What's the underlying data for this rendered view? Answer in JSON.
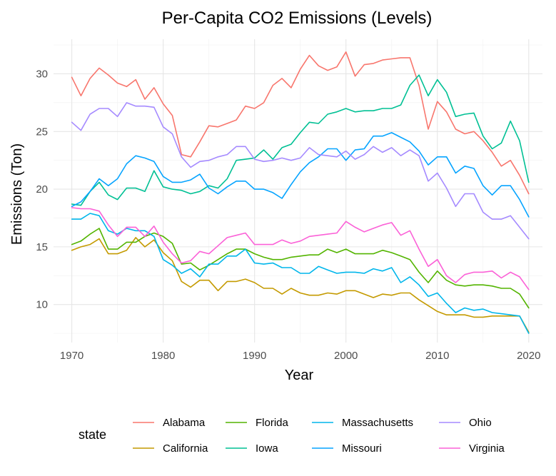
{
  "chart_data": {
    "type": "line",
    "title": "Per-Capita CO2 Emissions (Levels)",
    "xlabel": "Year",
    "ylabel": "Emissions (Ton)",
    "xlim": [
      1968,
      2021.5
    ],
    "ylim": [
      6.7,
      33.0
    ],
    "xticks": [
      1970,
      1980,
      1990,
      2000,
      2010,
      2020
    ],
    "yticks": [
      10,
      15,
      20,
      25,
      30
    ],
    "grid": true,
    "legend_title": "state",
    "legend_position": "bottom",
    "x": [
      1970,
      1971,
      1972,
      1973,
      1974,
      1975,
      1976,
      1977,
      1978,
      1979,
      1980,
      1981,
      1982,
      1983,
      1984,
      1985,
      1986,
      1987,
      1988,
      1989,
      1990,
      1991,
      1992,
      1993,
      1994,
      1995,
      1996,
      1997,
      1998,
      1999,
      2000,
      2001,
      2002,
      2003,
      2004,
      2005,
      2006,
      2007,
      2008,
      2009,
      2010,
      2011,
      2012,
      2013,
      2014,
      2015,
      2016,
      2017,
      2018,
      2019,
      2020
    ],
    "series": [
      {
        "name": "Alabama",
        "color": "#F8766D",
        "values": [
          29.7,
          28.1,
          29.6,
          30.5,
          29.9,
          29.2,
          28.9,
          29.5,
          27.8,
          28.8,
          27.4,
          26.4,
          23.0,
          22.8,
          24.1,
          25.5,
          25.4,
          25.7,
          26.0,
          27.2,
          27.0,
          27.5,
          29.0,
          29.6,
          28.8,
          30.4,
          31.6,
          30.7,
          30.3,
          30.6,
          31.9,
          29.8,
          30.8,
          30.9,
          31.2,
          31.3,
          31.4,
          31.4,
          29.0,
          25.2,
          27.6,
          26.7,
          25.2,
          24.8,
          25.0,
          24.2,
          23.2,
          22.0,
          22.5,
          21.2,
          19.6
        ]
      },
      {
        "name": "California",
        "color": "#C49A00",
        "values": [
          14.7,
          15.0,
          15.2,
          15.7,
          14.4,
          14.4,
          14.7,
          15.8,
          15.0,
          15.6,
          14.5,
          13.8,
          12.0,
          11.5,
          12.1,
          12.1,
          11.2,
          12.0,
          12.0,
          12.2,
          11.9,
          11.4,
          11.4,
          10.9,
          11.4,
          11.0,
          10.8,
          10.8,
          11.0,
          10.9,
          11.2,
          11.2,
          10.9,
          10.6,
          10.9,
          10.8,
          11.0,
          11.0,
          10.4,
          9.9,
          9.4,
          9.1,
          9.1,
          9.1,
          8.9,
          8.9,
          9.0,
          9.0,
          9.0,
          9.0,
          7.6
        ]
      },
      {
        "name": "Florida",
        "color": "#53B400",
        "values": [
          15.2,
          15.5,
          16.1,
          16.6,
          14.8,
          14.8,
          15.4,
          15.4,
          15.9,
          16.2,
          15.9,
          15.3,
          13.5,
          13.6,
          13.0,
          13.4,
          13.9,
          14.4,
          14.8,
          14.8,
          14.4,
          14.1,
          13.9,
          13.9,
          14.1,
          14.2,
          14.3,
          14.3,
          14.8,
          14.5,
          14.8,
          14.4,
          14.4,
          14.4,
          14.7,
          14.5,
          14.2,
          13.9,
          12.8,
          11.9,
          12.9,
          12.1,
          11.7,
          11.6,
          11.7,
          11.7,
          11.6,
          11.4,
          11.4,
          10.9,
          9.7
        ]
      },
      {
        "name": "Iowa",
        "color": "#00C094",
        "values": [
          18.7,
          18.6,
          19.8,
          20.6,
          19.5,
          19.1,
          20.1,
          20.1,
          19.8,
          21.6,
          20.2,
          20.0,
          19.9,
          19.6,
          19.8,
          20.3,
          20.1,
          20.9,
          22.5,
          22.6,
          22.7,
          23.4,
          22.6,
          23.6,
          23.9,
          24.9,
          25.8,
          25.7,
          26.5,
          26.7,
          27.0,
          26.7,
          26.8,
          26.8,
          27.0,
          27.0,
          27.3,
          29.0,
          29.9,
          28.1,
          29.5,
          28.4,
          26.3,
          26.5,
          26.6,
          24.6,
          23.5,
          24.0,
          25.9,
          24.2,
          20.6
        ]
      },
      {
        "name": "Massachusetts",
        "color": "#00B6EB",
        "values": [
          17.4,
          17.4,
          17.9,
          17.7,
          16.4,
          16.1,
          16.6,
          16.4,
          16.4,
          15.9,
          13.9,
          13.4,
          12.7,
          13.1,
          12.4,
          13.5,
          13.5,
          14.2,
          14.2,
          14.8,
          13.6,
          13.5,
          13.6,
          13.2,
          13.2,
          12.7,
          12.7,
          13.3,
          13.0,
          12.7,
          12.8,
          12.8,
          12.7,
          13.1,
          12.9,
          13.2,
          11.9,
          12.4,
          11.7,
          10.7,
          11.0,
          10.1,
          9.3,
          9.7,
          9.5,
          9.6,
          9.3,
          9.2,
          9.1,
          9.0,
          7.5
        ]
      },
      {
        "name": "Missouri",
        "color": "#06A4FF",
        "values": [
          18.5,
          18.9,
          19.8,
          20.9,
          20.3,
          20.9,
          22.2,
          22.9,
          22.7,
          22.4,
          21.1,
          20.6,
          20.6,
          20.8,
          21.3,
          20.1,
          19.6,
          20.2,
          20.7,
          20.7,
          20.0,
          20.0,
          19.7,
          19.2,
          20.4,
          21.5,
          22.3,
          22.8,
          23.5,
          23.5,
          22.5,
          23.4,
          23.5,
          24.6,
          24.6,
          24.9,
          24.5,
          24.1,
          23.3,
          22.1,
          22.8,
          22.8,
          21.4,
          22.0,
          21.8,
          20.3,
          19.5,
          20.3,
          20.3,
          19.1,
          17.6
        ]
      },
      {
        "name": "Ohio",
        "color": "#A58AFF",
        "values": [
          25.8,
          25.1,
          26.5,
          27.0,
          27.0,
          26.3,
          27.5,
          27.2,
          27.2,
          27.1,
          25.4,
          24.8,
          22.8,
          21.9,
          22.4,
          22.5,
          22.8,
          23.0,
          23.7,
          23.7,
          22.6,
          22.4,
          22.5,
          22.7,
          22.5,
          22.7,
          23.6,
          23.0,
          22.9,
          22.8,
          23.3,
          22.6,
          23.0,
          23.7,
          23.2,
          23.6,
          22.9,
          23.4,
          22.9,
          20.7,
          21.4,
          20.1,
          18.5,
          19.6,
          19.6,
          18.0,
          17.4,
          17.4,
          17.7,
          16.7,
          15.7
        ]
      },
      {
        "name": "Virginia",
        "color": "#FB61D7",
        "values": [
          18.4,
          18.3,
          18.3,
          18.1,
          16.9,
          15.9,
          16.7,
          16.7,
          15.9,
          16.8,
          15.4,
          14.4,
          13.6,
          13.8,
          14.6,
          14.4,
          15.1,
          15.8,
          16.0,
          16.2,
          15.2,
          15.2,
          15.2,
          15.6,
          15.3,
          15.5,
          15.9,
          16.0,
          16.1,
          16.2,
          17.2,
          16.7,
          16.3,
          16.6,
          16.9,
          17.1,
          16.0,
          16.4,
          14.8,
          13.3,
          13.9,
          12.5,
          11.9,
          12.6,
          12.8,
          12.8,
          12.9,
          12.3,
          12.8,
          12.4,
          11.3
        ]
      }
    ]
  }
}
